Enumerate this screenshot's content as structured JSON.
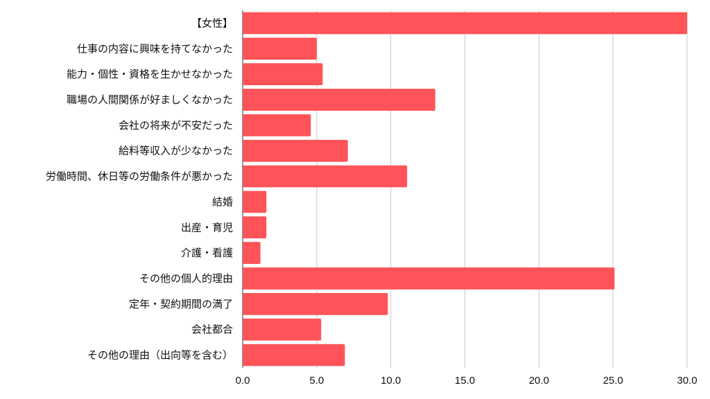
{
  "chart_data": {
    "type": "bar",
    "orientation": "horizontal",
    "title": "",
    "xlabel": "",
    "ylabel": "",
    "xlim": [
      0,
      30
    ],
    "grid": true,
    "legend": "none",
    "bar_color": "#fe5459",
    "categories": [
      "【女性】",
      "仕事の内容に興味を持てなかった",
      "能力・個性・資格を生かせなかった",
      "職場の人間関係が好ましくなかった",
      "会社の将来が不安だった",
      "給料等収入が少なかった",
      "労働時間、休日等の労働条件が悪かった",
      "結婚",
      "出産・育児",
      "介護・看護",
      "その他の個人的理由",
      "定年・契約期間の満了",
      "会社都合",
      "その他の理由（出向等を含む）"
    ],
    "values": [
      30.0,
      5.0,
      5.4,
      13.0,
      4.6,
      7.1,
      11.1,
      1.6,
      1.6,
      1.2,
      25.1,
      9.8,
      5.3,
      6.9
    ],
    "x_ticks": [
      "0.0",
      "5.0",
      "10.0",
      "15.0",
      "20.0",
      "25.0",
      "30.0"
    ]
  }
}
